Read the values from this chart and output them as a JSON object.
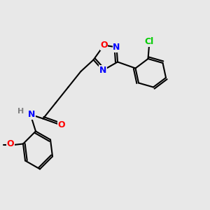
{
  "bg_color": "#e8e8e8",
  "bond_color": "#000000",
  "bond_width": 1.5,
  "atom_colors": {
    "O": "#ff0000",
    "N": "#0000ff",
    "Cl": "#00cc00",
    "C": "#000000",
    "H": "#808080"
  },
  "font_size": 9,
  "font_size_small": 8
}
